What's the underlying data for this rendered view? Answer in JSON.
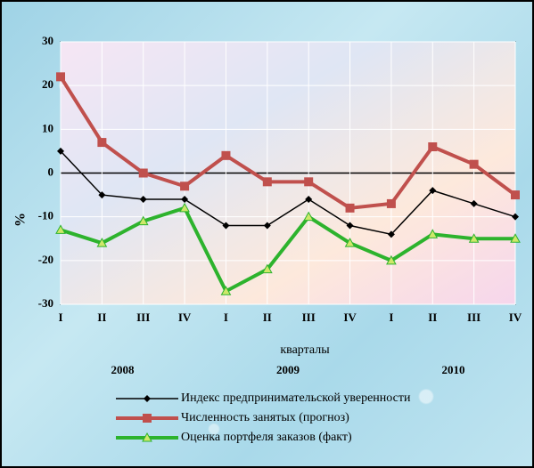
{
  "chart_data": {
    "type": "line",
    "categories": [
      "I",
      "II",
      "III",
      "IV",
      "I",
      "II",
      "III",
      "IV",
      "I",
      "II",
      "III",
      "IV"
    ],
    "years": [
      "2008",
      "2009",
      "2010"
    ],
    "x_label": "кварталы",
    "y_label": "%",
    "ylim": [
      -30,
      30
    ],
    "yticks": [
      -30,
      -20,
      -10,
      0,
      10,
      20,
      30
    ],
    "grid": true,
    "series": [
      {
        "name": "Индекс предпринимательской уверенности",
        "color": "#000000",
        "marker": "diamond",
        "values": [
          5,
          -5,
          -6,
          -6,
          -12,
          -12,
          -6,
          -12,
          -14,
          -4,
          -7,
          -10
        ]
      },
      {
        "name": "Численность занятых (прогноз)",
        "color": "#c0504d",
        "marker": "square",
        "values": [
          22,
          7,
          0,
          -3,
          4,
          -2,
          -2,
          -8,
          -7,
          6,
          2,
          -5
        ]
      },
      {
        "name": "Оценка портфеля заказов (факт)",
        "color": "#2db32d",
        "marker": "triangle",
        "values": [
          -13,
          -16,
          -11,
          -8,
          -27,
          -22,
          -10,
          -16,
          -20,
          -14,
          -15,
          -15
        ]
      }
    ]
  }
}
